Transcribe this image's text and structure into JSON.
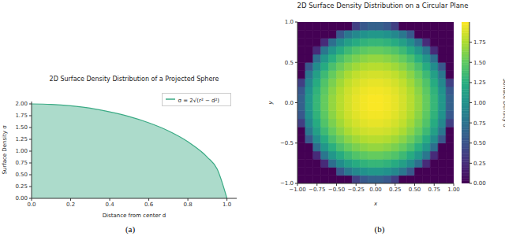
{
  "chart_data": [
    {
      "type": "area",
      "title": "2D Surface Density Distribution of a Projected Sphere",
      "caption": "(a)",
      "xlabel": "Distance from center d",
      "ylabel": "Surface Density σ",
      "x": [
        0,
        0.1,
        0.2,
        0.3,
        0.4,
        0.5,
        0.6,
        0.7,
        0.8,
        0.9,
        0.95,
        1.0
      ],
      "series": [
        {
          "name": "σ = 2√(r² − d²)",
          "color": "#3aaa84",
          "values": [
            2.0,
            1.99,
            1.96,
            1.91,
            1.83,
            1.73,
            1.6,
            1.43,
            1.2,
            0.87,
            0.62,
            0
          ]
        }
      ],
      "xlim": [
        0,
        1.05
      ],
      "ylim": [
        0,
        2.05
      ],
      "xticks": [
        {
          "value": 0,
          "label": "0.0"
        },
        0.2,
        0.4,
        0.6,
        0.8,
        {
          "value": 1,
          "label": "1.0"
        }
      ],
      "yticks": [
        {
          "value": 0,
          "label": "0.00"
        },
        0.25,
        {
          "value": 0.5,
          "label": "0.50"
        },
        0.75,
        {
          "value": 1,
          "label": "1.00"
        },
        1.25,
        {
          "value": 1.5,
          "label": "1.50"
        },
        1.75,
        {
          "value": 2,
          "label": "2.00"
        }
      ],
      "legend": "upper right"
    },
    {
      "type": "heatmap",
      "title": "2D Surface Density Distribution on a Circular Plane",
      "caption": "(b)",
      "xlabel": "x",
      "ylabel": "y",
      "x": [
        -0.95,
        -0.85,
        -0.75,
        -0.65,
        -0.55,
        -0.45,
        -0.35,
        -0.25,
        -0.15,
        -0.05,
        0.05,
        0.15,
        0.25,
        0.35,
        0.45,
        0.55,
        0.65,
        0.75,
        0.85,
        0.95
      ],
      "y": [
        -0.95,
        -0.85,
        -0.75,
        -0.65,
        -0.55,
        -0.45,
        -0.35,
        -0.25,
        -0.15,
        -0.05,
        0.05,
        0.15,
        0.25,
        0.35,
        0.45,
        0.55,
        0.65,
        0.75,
        0.85,
        0.95
      ],
      "cells": [
        [
          0,
          0,
          0,
          0,
          0,
          0,
          0,
          0.37,
          0.55,
          0.62,
          0.62,
          0.55,
          0.37,
          0,
          0,
          0,
          0,
          0,
          0,
          0
        ],
        [
          0,
          0,
          0,
          0,
          0,
          0.55,
          0.79,
          0.93,
          1.01,
          1.05,
          1.05,
          1.01,
          0.93,
          0.79,
          0.55,
          0,
          0,
          0,
          0,
          0
        ],
        [
          0,
          0,
          0,
          0.24,
          0.73,
          0.97,
          1.12,
          1.22,
          1.29,
          1.32,
          1.32,
          1.29,
          1.22,
          1.12,
          0.97,
          0.73,
          0.24,
          0,
          0,
          0
        ],
        [
          0,
          0,
          0.24,
          0.79,
          1.05,
          1.22,
          1.35,
          1.44,
          1.49,
          1.52,
          1.52,
          1.49,
          1.44,
          1.35,
          1.22,
          1.05,
          0.79,
          0.24,
          0,
          0
        ],
        [
          0,
          0,
          0.73,
          1.05,
          1.26,
          1.41,
          1.52,
          1.59,
          1.64,
          1.67,
          1.67,
          1.64,
          1.59,
          1.52,
          1.41,
          1.26,
          1.05,
          0.73,
          0,
          0
        ],
        [
          0,
          0.55,
          0.97,
          1.22,
          1.41,
          1.54,
          1.64,
          1.71,
          1.76,
          1.78,
          1.78,
          1.76,
          1.71,
          1.64,
          1.54,
          1.41,
          1.22,
          0.97,
          0.55,
          0
        ],
        [
          0,
          0.79,
          1.12,
          1.35,
          1.52,
          1.64,
          1.74,
          1.81,
          1.85,
          1.87,
          1.87,
          1.85,
          1.81,
          1.74,
          1.64,
          1.52,
          1.35,
          1.12,
          0.79,
          0
        ],
        [
          0.37,
          0.93,
          1.22,
          1.44,
          1.59,
          1.71,
          1.81,
          1.87,
          1.91,
          1.93,
          1.93,
          1.91,
          1.87,
          1.81,
          1.71,
          1.59,
          1.44,
          1.22,
          0.93,
          0.37
        ],
        [
          0.55,
          1.01,
          1.29,
          1.49,
          1.64,
          1.76,
          1.85,
          1.91,
          1.95,
          1.97,
          1.97,
          1.95,
          1.91,
          1.85,
          1.76,
          1.64,
          1.49,
          1.29,
          1.01,
          0.55
        ],
        [
          0.62,
          1.05,
          1.32,
          1.52,
          1.67,
          1.78,
          1.87,
          1.93,
          1.97,
          1.99,
          1.99,
          1.97,
          1.93,
          1.87,
          1.78,
          1.67,
          1.52,
          1.32,
          1.05,
          0.62
        ],
        [
          0.62,
          1.05,
          1.32,
          1.52,
          1.67,
          1.78,
          1.87,
          1.93,
          1.97,
          1.99,
          1.99,
          1.97,
          1.93,
          1.87,
          1.78,
          1.67,
          1.52,
          1.32,
          1.05,
          0.62
        ],
        [
          0.55,
          1.01,
          1.29,
          1.49,
          1.64,
          1.76,
          1.85,
          1.91,
          1.95,
          1.97,
          1.97,
          1.95,
          1.91,
          1.85,
          1.76,
          1.64,
          1.49,
          1.29,
          1.01,
          0.55
        ],
        [
          0.37,
          0.93,
          1.22,
          1.44,
          1.59,
          1.71,
          1.81,
          1.87,
          1.91,
          1.93,
          1.93,
          1.91,
          1.87,
          1.81,
          1.71,
          1.59,
          1.44,
          1.22,
          0.93,
          0.37
        ],
        [
          0,
          0.79,
          1.12,
          1.35,
          1.52,
          1.64,
          1.74,
          1.81,
          1.85,
          1.87,
          1.87,
          1.85,
          1.81,
          1.74,
          1.64,
          1.52,
          1.35,
          1.12,
          0.79,
          0
        ],
        [
          0,
          0.55,
          0.97,
          1.22,
          1.41,
          1.54,
          1.64,
          1.71,
          1.76,
          1.78,
          1.78,
          1.76,
          1.71,
          1.64,
          1.54,
          1.41,
          1.22,
          0.97,
          0.55,
          0
        ],
        [
          0,
          0,
          0.73,
          1.05,
          1.26,
          1.41,
          1.52,
          1.59,
          1.64,
          1.67,
          1.67,
          1.64,
          1.59,
          1.52,
          1.41,
          1.26,
          1.05,
          0.73,
          0,
          0
        ],
        [
          0,
          0,
          0.24,
          0.79,
          1.05,
          1.22,
          1.35,
          1.44,
          1.49,
          1.52,
          1.52,
          1.49,
          1.44,
          1.35,
          1.22,
          1.05,
          0.79,
          0.24,
          0,
          0
        ],
        [
          0,
          0,
          0,
          0.24,
          0.73,
          0.97,
          1.12,
          1.22,
          1.29,
          1.32,
          1.32,
          1.29,
          1.22,
          1.12,
          0.97,
          0.73,
          0.24,
          0,
          0,
          0
        ],
        [
          0,
          0,
          0,
          0,
          0,
          0.55,
          0.79,
          0.93,
          1.01,
          1.05,
          1.05,
          1.01,
          0.93,
          0.79,
          0.55,
          0,
          0,
          0,
          0,
          0
        ],
        [
          0,
          0,
          0,
          0,
          0,
          0,
          0,
          0.37,
          0.55,
          0.62,
          0.62,
          0.55,
          0.37,
          0,
          0,
          0,
          0,
          0,
          0,
          0
        ]
      ],
      "xlim": [
        -1,
        1
      ],
      "ylim": [
        -1,
        1
      ],
      "xticks": [
        {
          "value": -1,
          "label": "−1.00"
        },
        {
          "value": -0.75,
          "label": "−0.75"
        },
        {
          "value": -0.5,
          "label": "−0.50"
        },
        {
          "value": -0.25,
          "label": "−0.25"
        },
        {
          "value": 0,
          "label": "0.00"
        },
        0.25,
        {
          "value": 0.5,
          "label": "0.50"
        },
        0.75,
        {
          "value": 1,
          "label": "1.00"
        }
      ],
      "yticks": [
        {
          "value": -1,
          "label": "−1.0"
        },
        {
          "value": -0.5,
          "label": "−0.5"
        },
        {
          "value": 0,
          "label": "0.0"
        },
        0.5,
        {
          "value": 1,
          "label": "1.0"
        }
      ],
      "colorbar_label": "Surface Density σ",
      "colorbar_lim": [
        0,
        2
      ],
      "colorbar_ticks": [
        {
          "value": 0,
          "label": "0.00"
        },
        0.25,
        {
          "value": 0.5,
          "label": "0.50"
        },
        0.75,
        {
          "value": 1,
          "label": "1.00"
        },
        1.25,
        {
          "value": 1.5,
          "label": "1.50"
        },
        1.75
      ]
    }
  ]
}
